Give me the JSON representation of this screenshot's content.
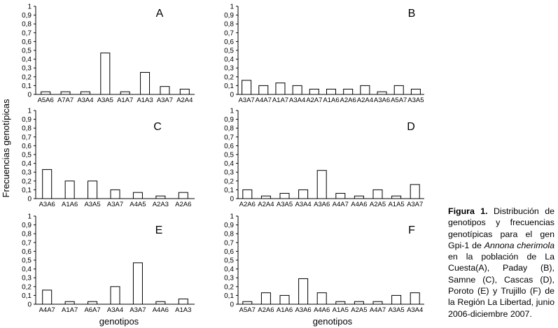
{
  "figure": {
    "ylabel": "Frecuencias genotípicas",
    "xlabel": "genotipos",
    "caption": {
      "label": "Figura 1.",
      "text_before_species": " Distribución de genotipos y frecuencias genotípicas para el gen Gpi-1 de ",
      "species": "Annona cherimola",
      "text_after_species": " en la población de La Cuesta(A), Paday (B), Samne (C), Cascas (D), Poroto (E) y Trujillo (F) de la Región La Libertad, junio 2006-diciembre 2007."
    }
  },
  "chart_data": [
    {
      "type": "bar",
      "title": "A",
      "categories": [
        "A5A6",
        "A7A7",
        "A3A4",
        "A3A5",
        "A1A7",
        "A1A3",
        "A3A7",
        "A2A4"
      ],
      "values": [
        0.03,
        0.03,
        0.03,
        0.47,
        0.03,
        0.25,
        0.09,
        0.06
      ],
      "ylim": [
        0,
        1
      ],
      "yticks": [
        "0",
        "0,1",
        "0,2",
        "0,3",
        "0,4",
        "0,5",
        "0,6",
        "0,7",
        "0,8",
        "0,9",
        "1"
      ]
    },
    {
      "type": "bar",
      "title": "B",
      "categories": [
        "A3A7",
        "A4A7",
        "A1A7",
        "A3A4",
        "A2A7",
        "A1A6",
        "A2A6",
        "A2A4",
        "A3A6",
        "A5A7",
        "A3A5"
      ],
      "values": [
        0.16,
        0.1,
        0.13,
        0.1,
        0.06,
        0.06,
        0.06,
        0.1,
        0.03,
        0.1,
        0.06
      ],
      "ylim": [
        0,
        1
      ],
      "yticks": [
        "0",
        "0,1",
        "0,2",
        "0,3",
        "0,4",
        "0,5",
        "0,6",
        "0,7",
        "0,8",
        "0,9",
        "1"
      ]
    },
    {
      "type": "bar",
      "title": "C",
      "categories": [
        "A3A6",
        "A1A6",
        "A3A5",
        "A3A7",
        "A4A5",
        "A2A3",
        "A2A6"
      ],
      "values": [
        0.33,
        0.2,
        0.2,
        0.1,
        0.07,
        0.03,
        0.07
      ],
      "ylim": [
        0,
        1
      ],
      "yticks": [
        "0",
        "0,1",
        "0,2",
        "0,3",
        "0,4",
        "0,5",
        "0,6",
        "0,7",
        "0,8",
        "0,9",
        "1"
      ]
    },
    {
      "type": "bar",
      "title": "D",
      "categories": [
        "A2A6",
        "A2A4",
        "A3A5",
        "A3A4",
        "A3A6",
        "A4A7",
        "A4A6",
        "A2A5",
        "A1A5",
        "A3A7"
      ],
      "values": [
        0.1,
        0.03,
        0.06,
        0.1,
        0.32,
        0.06,
        0.03,
        0.1,
        0.03,
        0.16
      ],
      "ylim": [
        0,
        1
      ],
      "yticks": [
        "0",
        "0,1",
        "0,2",
        "0,3",
        "0,4",
        "0,5",
        "0,6",
        "0,7",
        "0,8",
        "0,9",
        "1"
      ]
    },
    {
      "type": "bar",
      "title": "E",
      "categories": [
        "A4A7",
        "A1A7",
        "A6A7",
        "A3A4",
        "A3A7",
        "A4A6",
        "A1A3"
      ],
      "values": [
        0.16,
        0.03,
        0.03,
        0.2,
        0.47,
        0.03,
        0.06
      ],
      "ylim": [
        0,
        1
      ],
      "yticks": [
        "0",
        "0,1",
        "0,2",
        "0,3",
        "0,4",
        "0,5",
        "0,6",
        "0,7",
        "0,8",
        "0,9",
        "1"
      ]
    },
    {
      "type": "bar",
      "title": "F",
      "categories": [
        "A5A7",
        "A2A6",
        "A1A6",
        "A3A6",
        "A4A6",
        "A1A5",
        "A2A5",
        "A4A7",
        "A3A5",
        "A3A4"
      ],
      "values": [
        0.03,
        0.13,
        0.1,
        0.29,
        0.13,
        0.03,
        0.03,
        0.03,
        0.1,
        0.13
      ],
      "ylim": [
        0,
        1
      ],
      "yticks": [
        "0",
        "0,1",
        "0,2",
        "0,3",
        "0,4",
        "0,5",
        "0,6",
        "0,7",
        "0,8",
        "0,9",
        "1"
      ]
    }
  ]
}
